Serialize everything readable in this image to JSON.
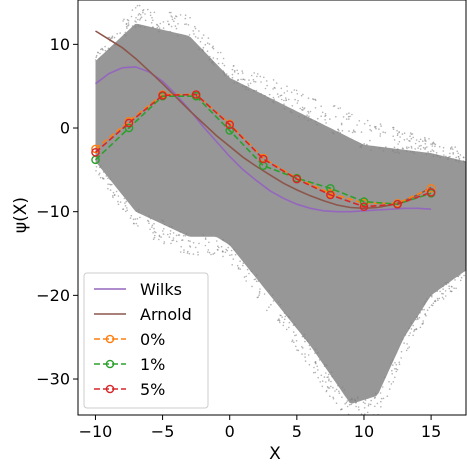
{
  "chart_data": {
    "type": "line",
    "xlabel": "X",
    "ylabel": "ψ(X)",
    "xlim": [
      -11.3,
      17.6
    ],
    "ylim": [
      -34.3,
      15.3
    ],
    "xticks": [
      -10,
      -5,
      0,
      5,
      10,
      15
    ],
    "xtick_labels": [
      "−10",
      "−5",
      "0",
      "5",
      "10",
      "15"
    ],
    "yticks": [
      10,
      0,
      -10,
      -20,
      -30
    ],
    "ytick_labels": [
      "10",
      "0",
      "−10",
      "−20",
      "−30"
    ],
    "grid": false,
    "legend": {
      "placement": "lower-left"
    },
    "background_scatter": {
      "color": "#808080",
      "description_upper_edge": [
        [
          -10,
          8
        ],
        [
          -7,
          12.5
        ],
        [
          -3,
          11
        ],
        [
          0,
          6
        ],
        [
          5,
          2
        ],
        [
          10,
          -2
        ],
        [
          15,
          -3
        ],
        [
          17.6,
          -4
        ]
      ],
      "description_lower_edge": [
        [
          -10,
          -4
        ],
        [
          -7,
          -10
        ],
        [
          -3,
          -13
        ],
        [
          -1,
          -13
        ],
        [
          0,
          -14
        ],
        [
          3,
          -20
        ],
        [
          6,
          -26
        ],
        [
          9,
          -33
        ],
        [
          11,
          -32
        ],
        [
          13,
          -25
        ],
        [
          15,
          -20
        ],
        [
          17.6,
          -17
        ]
      ]
    },
    "series": [
      {
        "name": "Wilks",
        "style": "solid",
        "marker": "none",
        "color": "#9467bd",
        "x": [
          -10,
          -9,
          -8,
          -7,
          -6,
          -5,
          -4,
          -3,
          -2,
          -1,
          0,
          1,
          2,
          3,
          4,
          5,
          6,
          7,
          8,
          9,
          10,
          11,
          12,
          13,
          14,
          15
        ],
        "y": [
          5.3,
          6.5,
          7.2,
          7.3,
          6.7,
          5.6,
          4.0,
          2.2,
          0.2,
          -1.6,
          -3.4,
          -5.0,
          -6.3,
          -7.5,
          -8.4,
          -9.1,
          -9.6,
          -9.9,
          -10.0,
          -10.0,
          -9.9,
          -9.8,
          -9.7,
          -9.6,
          -9.6,
          -9.7
        ]
      },
      {
        "name": "Arnold",
        "style": "solid",
        "marker": "none",
        "color": "#8c564b",
        "x": [
          -10,
          -9,
          -8,
          -7,
          -6,
          -5,
          -4,
          -3,
          -2,
          -1,
          0,
          1,
          2,
          3,
          4,
          5,
          6,
          7,
          8,
          9,
          10,
          11,
          12,
          13,
          14,
          15
        ],
        "y": [
          11.6,
          10.6,
          9.6,
          8.3,
          6.8,
          5.3,
          3.7,
          2.1,
          0.6,
          -0.9,
          -2.2,
          -3.5,
          -4.6,
          -5.6,
          -6.6,
          -7.4,
          -8.1,
          -8.7,
          -9.2,
          -9.5,
          -9.6,
          -9.5,
          -9.2,
          -8.7,
          -8.0,
          -7.1
        ]
      },
      {
        "name": "0%",
        "style": "dashed",
        "marker": "circle",
        "color": "#ff7f0e",
        "x": [
          -10,
          -7.5,
          -5,
          -2.5,
          0,
          2.5,
          5,
          7.5,
          10,
          12.5,
          15
        ],
        "y": [
          -2.5,
          0.8,
          4.0,
          4.0,
          0.5,
          -3.6,
          -6.0,
          -7.8,
          -9.0,
          -9.0,
          -7.2
        ]
      },
      {
        "name": "1%",
        "style": "dashed",
        "marker": "circle",
        "color": "#2ca02c",
        "x": [
          -10,
          -7.5,
          -5,
          -2.5,
          0,
          2.5,
          5,
          7.5,
          10,
          12.5,
          15
        ],
        "y": [
          -3.8,
          0.0,
          3.8,
          3.8,
          -0.3,
          -4.5,
          -6.0,
          -7.2,
          -8.8,
          -9.1,
          -7.8
        ]
      },
      {
        "name": "5%",
        "style": "dashed",
        "marker": "circle",
        "color": "#d62728",
        "x": [
          -10,
          -7.5,
          -5,
          -2.5,
          0,
          2.5,
          5,
          7.5,
          10,
          12.5,
          15
        ],
        "y": [
          -2.9,
          0.6,
          3.9,
          4.0,
          0.4,
          -3.7,
          -6.1,
          -8.0,
          -9.4,
          -9.1,
          -7.7
        ]
      }
    ]
  }
}
